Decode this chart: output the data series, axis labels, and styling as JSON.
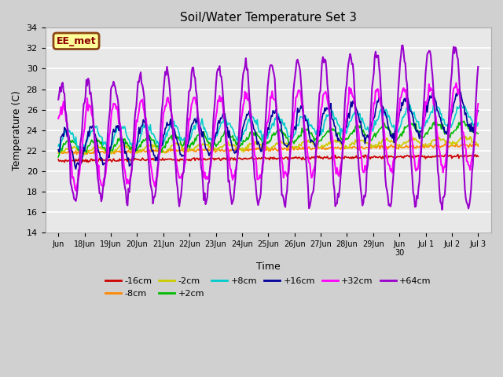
{
  "title": "Soil/Water Temperature Set 3",
  "xlabel": "Time",
  "ylabel": "Temperature (C)",
  "ylim": [
    14,
    34
  ],
  "yticks": [
    14,
    16,
    18,
    20,
    22,
    24,
    26,
    28,
    30,
    32,
    34
  ],
  "fig_bg": "#d0d0d0",
  "plot_bg": "#e8e8e8",
  "annotation_text": "EE_met",
  "annotation_bg": "#ffff99",
  "annotation_border": "#8B4513",
  "series_order": [
    "-16cm",
    "-8cm",
    "-2cm",
    "+2cm",
    "+8cm",
    "+16cm",
    "+32cm",
    "+64cm"
  ],
  "series": {
    "-16cm": {
      "color": "#cc0000"
    },
    "-8cm": {
      "color": "#ff8800"
    },
    "-2cm": {
      "color": "#cccc00"
    },
    "+2cm": {
      "color": "#00bb00"
    },
    "+8cm": {
      "color": "#00cccc"
    },
    "+16cm": {
      "color": "#000099"
    },
    "+32cm": {
      "color": "#ff00ff"
    },
    "+64cm": {
      "color": "#9900cc"
    }
  },
  "xtick_labels": [
    "Jun",
    "18Jun",
    "19Jun",
    "20Jun",
    "21Jun",
    "22Jun",
    "23Jun",
    "24Jun",
    "25Jun",
    "26Jun",
    "27Jun",
    "28Jun",
    "29Jun",
    "Jun\n30",
    "Jul 1",
    "Jul 2",
    "Jul 3"
  ],
  "legend_rows": [
    [
      "-16cm",
      "-8cm",
      "-2cm",
      "+2cm",
      "+8cm",
      "+16cm"
    ],
    [
      "+32cm",
      "+64cm"
    ]
  ]
}
